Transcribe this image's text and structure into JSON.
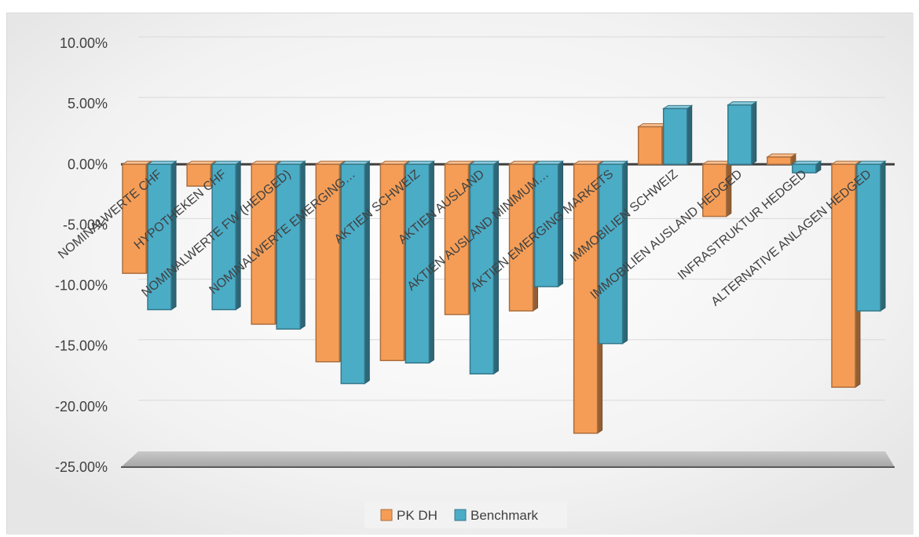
{
  "chart_data": {
    "type": "bar",
    "categories": [
      "NOMINALWERTE CHF",
      "HYPOTHEKEN CHF",
      "NOMINALWERTE FW (HEDGED)",
      "NOMINALWERTE EMERGING…",
      "AKTIEN SCHWEIZ",
      "AKTIEN AUSLAND",
      "AKTIEN AUSLAND MINIMUM…",
      "AKTIEN EMERGING MARKETS",
      "IMMOBILIEN SCHWEIZ",
      "IMMOBILIEN AUSLAND HEDGED",
      "INFRASTRUKTUR HEDGED",
      "ALTERNATIVE ANLAGEN HEDGED"
    ],
    "series": [
      {
        "name": "PK DH",
        "color": "#f59d56",
        "values": [
          -9.0,
          -1.8,
          -13.2,
          -16.3,
          -16.2,
          -12.4,
          -12.1,
          -22.2,
          3.1,
          -4.3,
          0.6,
          -18.4
        ]
      },
      {
        "name": "Benchmark",
        "color": "#4bacc6",
        "values": [
          -12.0,
          -12.0,
          -13.6,
          -18.1,
          -16.4,
          -17.3,
          -10.1,
          -14.8,
          4.6,
          4.9,
          -0.7,
          -12.1
        ]
      }
    ],
    "y_ticks": [
      "10.00%",
      "5.00%",
      "0.00%",
      "-5.00%",
      "-10.00%",
      "-15.00%",
      "-20.00%",
      "-25.00%"
    ],
    "ylim": [
      -25,
      10
    ],
    "title": "",
    "xlabel": "",
    "ylabel": "",
    "grid": true,
    "legend_position": "bottom"
  }
}
